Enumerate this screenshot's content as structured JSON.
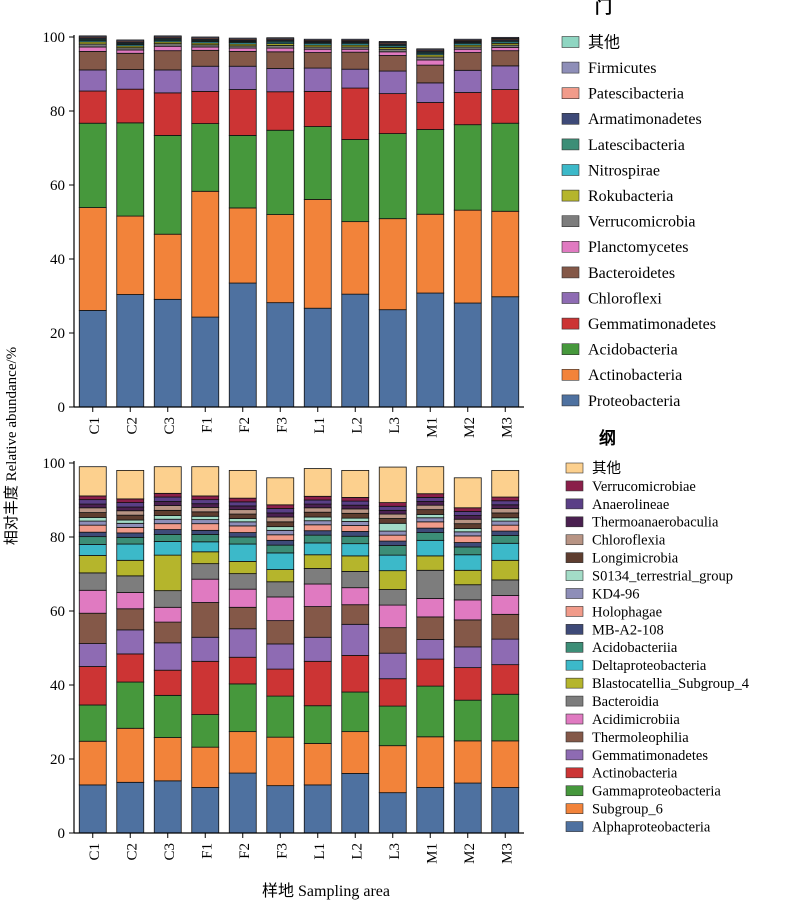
{
  "figure": {
    "ylabel": "相对丰度 Relative abundance/%",
    "xlabel": "样地  Sampling area"
  },
  "chart_data": [
    {
      "type": "bar",
      "stacked": true,
      "legend_title": "门",
      "categories": [
        "C1",
        "C2",
        "C3",
        "F1",
        "F2",
        "F3",
        "L1",
        "L2",
        "L3",
        "M1",
        "M2",
        "M3"
      ],
      "ylim": [
        0,
        100
      ],
      "yticks": [
        0,
        20,
        40,
        60,
        80,
        100
      ],
      "grid": false,
      "legend_placement": "right",
      "series": [
        {
          "name": "Proteobacteria",
          "color": "#4e71a0",
          "values": [
            26.1,
            30.4,
            29.1,
            24.3,
            33.5,
            28.2,
            26.7,
            30.5,
            26.3,
            30.8,
            28.1,
            29.8
          ]
        },
        {
          "name": "Actinobacteria",
          "color": "#f2833a",
          "values": [
            27.8,
            21.2,
            17.6,
            34,
            20.3,
            23.8,
            29.4,
            19.6,
            24.6,
            21.3,
            25.1,
            23.1
          ]
        },
        {
          "name": "Acidobacteria",
          "color": "#46983c",
          "values": [
            22.8,
            25.2,
            26.7,
            18.3,
            19.6,
            22.8,
            19.7,
            22.2,
            23,
            22.9,
            23.1,
            23.8
          ]
        },
        {
          "name": "Gemmatimonadetes",
          "color": "#cc3434",
          "values": [
            8.7,
            9.1,
            11.5,
            8.7,
            12.4,
            10.4,
            9.5,
            13.9,
            10.8,
            7.3,
            8.7,
            9.1
          ]
        },
        {
          "name": "Chloroflexi",
          "color": "#8e6bb3",
          "values": [
            5.7,
            5.3,
            6.2,
            6.8,
            6.3,
            6.3,
            6.3,
            5.1,
            6.1,
            5.3,
            6,
            6.4
          ]
        },
        {
          "name": "Bacteroidetes",
          "color": "#845848",
          "values": [
            5,
            4.4,
            5.2,
            4.3,
            4,
            4.5,
            4.2,
            4.6,
            4.2,
            4.8,
            4.8,
            4.1
          ]
        },
        {
          "name": "Planctomycetes",
          "color": "#e07ac1",
          "values": [
            1.2,
            0.9,
            1.2,
            0.9,
            0.9,
            1,
            0.9,
            0.8,
            1,
            1.4,
            0.9,
            0.9
          ]
        },
        {
          "name": "Verrucomicrobia",
          "color": "#7d7d7d",
          "values": [
            0.8,
            0.6,
            0.7,
            0.6,
            0.6,
            0.7,
            0.6,
            0.6,
            0.7,
            0.8,
            0.6,
            0.6
          ]
        },
        {
          "name": "Rokubacteria",
          "color": "#b5b52c",
          "values": [
            0.6,
            0.5,
            0.5,
            0.5,
            0.5,
            0.5,
            0.5,
            0.5,
            0.5,
            0.6,
            0.5,
            0.5
          ]
        },
        {
          "name": "Nitrospirae",
          "color": "#3cb9c9",
          "values": [
            0.4,
            0.4,
            0.4,
            0.4,
            0.4,
            0.4,
            0.4,
            0.4,
            0.4,
            0.4,
            0.4,
            0.4
          ]
        },
        {
          "name": "Latescibacteria",
          "color": "#3c8e77",
          "values": [
            0.3,
            0.3,
            0.3,
            0.3,
            0.3,
            0.3,
            0.3,
            0.3,
            0.3,
            0.3,
            0.3,
            0.3
          ]
        },
        {
          "name": "Armatimonadetes",
          "color": "#3e4a78",
          "values": [
            0.3,
            0.3,
            0.3,
            0.3,
            0.3,
            0.3,
            0.3,
            0.3,
            0.3,
            0.3,
            0.3,
            0.3
          ]
        },
        {
          "name": "Patescibacteria",
          "color": "#f19b8a",
          "values": [
            0.3,
            0.3,
            0.3,
            0.3,
            0.3,
            0.3,
            0.3,
            0.3,
            0.3,
            0.3,
            0.3,
            0.3
          ]
        },
        {
          "name": "Firmicutes",
          "color": "#8e8eb8",
          "values": [
            0.3,
            0.3,
            0.3,
            0.3,
            0.3,
            0.3,
            0.3,
            0.3,
            0.3,
            0.3,
            0.3,
            0.3
          ]
        },
        {
          "name": "其他",
          "color": "#8fd6c2",
          "values": [
            0,
            0,
            0,
            0,
            0,
            0,
            0,
            0,
            0,
            0,
            0,
            0
          ]
        }
      ]
    },
    {
      "type": "bar",
      "stacked": true,
      "legend_title": "纲",
      "categories": [
        "C1",
        "C2",
        "C3",
        "F1",
        "F2",
        "F3",
        "L1",
        "L2",
        "L3",
        "M1",
        "M2",
        "M3"
      ],
      "ylim": [
        0,
        100
      ],
      "yticks": [
        0,
        20,
        40,
        60,
        80,
        100
      ],
      "grid": false,
      "legend_placement": "right",
      "series": [
        {
          "name": "Alphaproteobacteria",
          "color": "#4e71a0",
          "values": [
            13,
            13.7,
            14.1,
            12.3,
            16.2,
            12.8,
            13,
            16.1,
            10.9,
            12.3,
            13.5,
            12.3
          ]
        },
        {
          "name": "Subgroup_6",
          "color": "#f2833a",
          "values": [
            11.8,
            14.6,
            11.7,
            10.9,
            11.2,
            13.1,
            11.2,
            11.3,
            12.7,
            13.7,
            11.4,
            12.6
          ]
        },
        {
          "name": "Gammaproteobacteria",
          "color": "#46983c",
          "values": [
            9.8,
            12.5,
            11.4,
            8.8,
            12.9,
            11.1,
            10.2,
            10.7,
            10.7,
            13.7,
            11,
            12.6
          ]
        },
        {
          "name": "Actinobacteria",
          "color": "#cc3434",
          "values": [
            10.4,
            7.6,
            6.8,
            14.4,
            7.2,
            7.3,
            12,
            9.9,
            7.4,
            7.3,
            8.8,
            8
          ]
        },
        {
          "name": "Gemmatimonadetes",
          "color": "#8e6bb3",
          "values": [
            6.2,
            6.5,
            7.4,
            6.5,
            7.7,
            6.8,
            6.5,
            8.4,
            6.9,
            5.3,
            5.6,
            6.9
          ]
        },
        {
          "name": "Thermoleophilia",
          "color": "#845848",
          "values": [
            8.2,
            5.7,
            5.6,
            9.4,
            5.8,
            6.3,
            8.3,
            5.3,
            6.9,
            6.1,
            7.3,
            6.7
          ]
        },
        {
          "name": "Acidimicrobiia",
          "color": "#e07ac1",
          "values": [
            6.2,
            4.4,
            4,
            6.3,
            4.9,
            6.4,
            6.1,
            4.6,
            6.1,
            5,
            5.4,
            5.1
          ]
        },
        {
          "name": "Bacteroidia",
          "color": "#7d7d7d",
          "values": [
            4.7,
            4.5,
            4.5,
            4.2,
            4.2,
            4.1,
            4.2,
            4.4,
            4.2,
            7.6,
            4.1,
            4.2
          ]
        },
        {
          "name": "Blastocatellia_Subgroup_4",
          "color": "#b5b52c",
          "values": [
            4.7,
            4.2,
            9.6,
            3.2,
            3.3,
            3.3,
            3.7,
            4.2,
            5.1,
            3.9,
            3.9,
            5.3
          ]
        },
        {
          "name": "Deltaproteobacteria",
          "color": "#3cb9c9",
          "values": [
            3,
            4.4,
            3.7,
            2.7,
            4.7,
            4.5,
            3.2,
            3.3,
            4.2,
            4.2,
            4.2,
            4.6
          ]
        },
        {
          "name": "Acidobacteriia",
          "color": "#3c8e77",
          "values": [
            2.1,
            1.8,
            1.9,
            2,
            1.9,
            2.1,
            2.1,
            2,
            2.6,
            2.1,
            2.1,
            2.1
          ]
        },
        {
          "name": "MB-A2-108",
          "color": "#3e4a78",
          "values": [
            1.2,
            1.2,
            1.3,
            1.1,
            1.2,
            1.3,
            1.2,
            1.3,
            1.2,
            1.2,
            1.2,
            1.2
          ]
        },
        {
          "name": "Holophagae",
          "color": "#f19b8a",
          "values": [
            1.9,
            1.5,
            1.6,
            1.8,
            1.8,
            1.5,
            1.6,
            1.6,
            1.6,
            1.7,
            1.8,
            1.6
          ]
        },
        {
          "name": "KD4-96",
          "color": "#8e8eb8",
          "values": [
            1.1,
            1.1,
            1.2,
            1.1,
            1.1,
            1.2,
            1.1,
            1.1,
            1.1,
            1.1,
            1.1,
            1.1
          ]
        },
        {
          "name": "S0134_terrestrial_group",
          "color": "#a3dcc7",
          "values": [
            1,
            0.9,
            1,
            0.9,
            0.9,
            1,
            1,
            0.9,
            2.1,
            0.9,
            0.9,
            0.9
          ]
        },
        {
          "name": "Longimicrobia",
          "color": "#5e3d2f",
          "values": [
            1.3,
            1.3,
            1.4,
            1.2,
            1.2,
            1.3,
            1.3,
            1.3,
            1.3,
            1.3,
            1.3,
            1.3
          ]
        },
        {
          "name": "Chloroflexia",
          "color": "#b89484",
          "values": [
            1.3,
            1.2,
            1.3,
            1.2,
            1.2,
            1.3,
            1.2,
            1.2,
            1.2,
            1.2,
            1.2,
            1.2
          ]
        },
        {
          "name": "Thermoanaerobaculia",
          "color": "#4a2050",
          "values": [
            1,
            1,
            1.1,
            1,
            1,
            1.1,
            1,
            1,
            1,
            1,
            1,
            1
          ]
        },
        {
          "name": "Anaerolineae",
          "color": "#5a3f86",
          "values": [
            1.2,
            1.2,
            1.2,
            1.1,
            1.1,
            1.2,
            1.1,
            1.1,
            1.1,
            1.1,
            1.1,
            1.1
          ]
        },
        {
          "name": "Verrucomicrobiae",
          "color": "#8a1f4a",
          "values": [
            1,
            1,
            1,
            1,
            1,
            1,
            1,
            1,
            1,
            1,
            1,
            1
          ]
        },
        {
          "name": "其他",
          "color": "#fcd08e",
          "values": [
            7.9,
            7.7,
            7.2,
            7.9,
            7.5,
            7.3,
            7.5,
            7.3,
            9.6,
            7.3,
            8.1,
            7.2
          ]
        }
      ]
    }
  ]
}
